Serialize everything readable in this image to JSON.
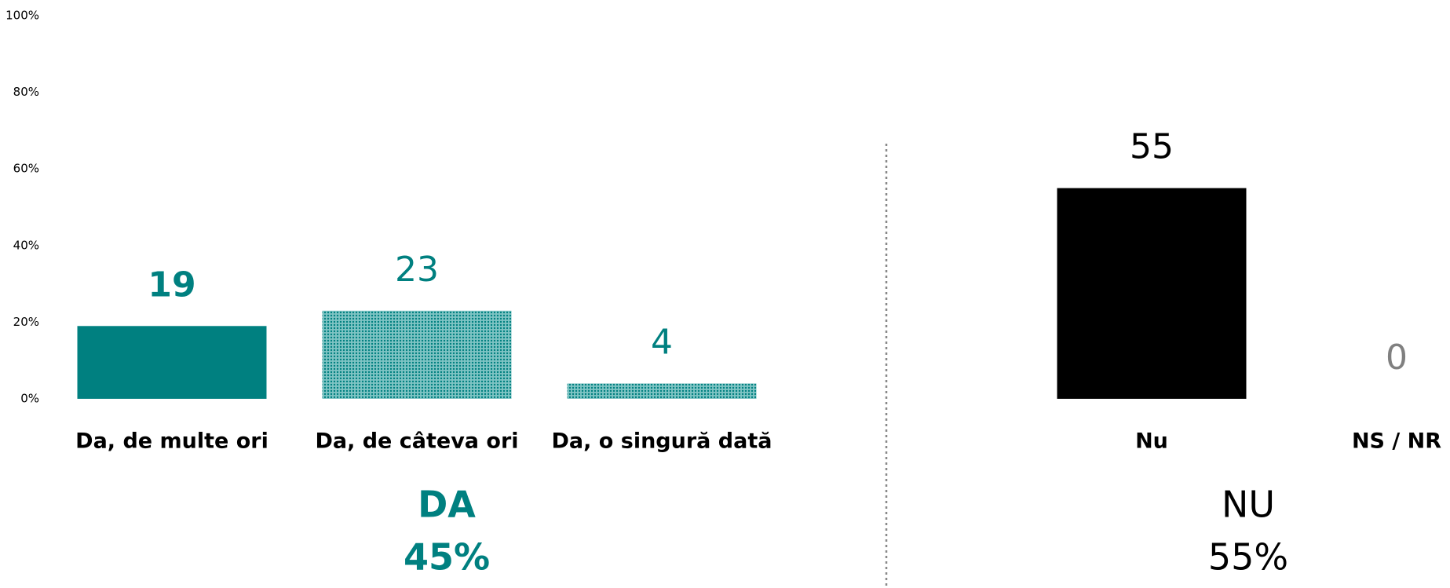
{
  "chart_data": {
    "type": "bar",
    "categories": [
      "Da, de multe ori",
      "Da, de câteva ori",
      "Da, o singură dată",
      null,
      "Nu",
      "NS / NR"
    ],
    "values": [
      19,
      23,
      4,
      null,
      55,
      0
    ],
    "colors": [
      "#008080",
      "#008080",
      "#008080",
      null,
      "#000000",
      "#808080"
    ],
    "hatch": [
      false,
      true,
      true,
      false,
      false,
      false
    ],
    "label_bold": [
      true,
      false,
      false,
      false,
      false,
      false
    ],
    "ylim": [
      0,
      100
    ],
    "yticks": [
      {
        "value": 0,
        "label": "0%"
      },
      {
        "value": 20,
        "label": "20%"
      },
      {
        "value": 40,
        "label": "40%"
      },
      {
        "value": 60,
        "label": "60%"
      },
      {
        "value": 80,
        "label": "80%"
      },
      {
        "value": 100,
        "label": "100%"
      }
    ],
    "grid": false,
    "groups": [
      {
        "name": "DA",
        "total": "45%",
        "color": "#008080",
        "bold": true
      },
      {
        "name": "NU",
        "total": "55%",
        "color": "#000000",
        "bold": false
      }
    ]
  }
}
